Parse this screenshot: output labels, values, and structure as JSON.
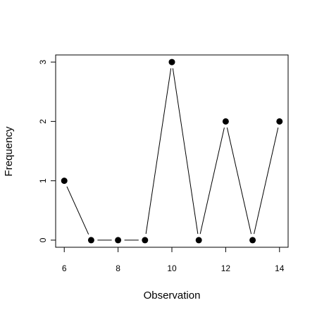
{
  "chart_data": {
    "type": "line",
    "x": [
      6,
      7,
      8,
      9,
      10,
      11,
      12,
      13,
      14
    ],
    "values": [
      1,
      0,
      0,
      0,
      3,
      0,
      2,
      0,
      2
    ],
    "color": "#000000",
    "xlabel": "Observation",
    "ylabel": "Frequency",
    "xlim": [
      5.68,
      14.32
    ],
    "ylim": [
      -0.12,
      3.12
    ],
    "xticks": [
      6,
      8,
      10,
      12,
      14
    ],
    "yticks": [
      0,
      1,
      2,
      3
    ]
  }
}
